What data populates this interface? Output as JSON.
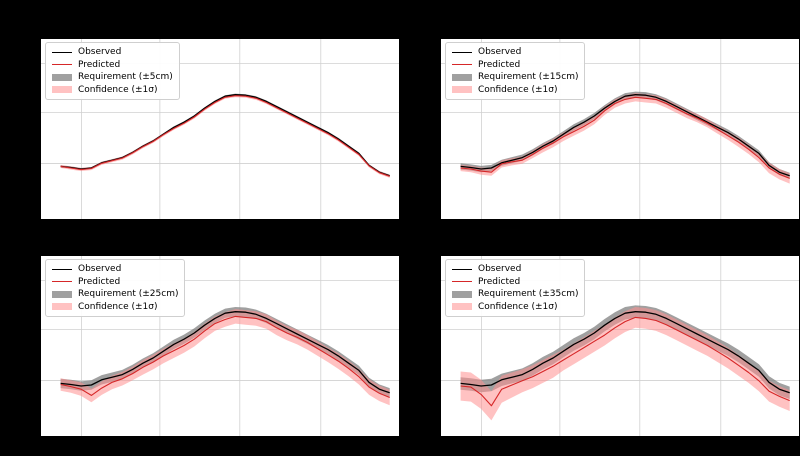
{
  "chart_data": [
    {
      "type": "line",
      "title": "",
      "xlabel": "",
      "ylabel": "",
      "legend_position": "top-left",
      "grid": true,
      "xlim": [
        0,
        350
      ],
      "ylim": [
        0,
        350
      ],
      "series": [
        {
          "name": "Observed",
          "color": "#000000",
          "x": [
            20,
            30,
            40,
            50,
            60,
            70,
            80,
            90,
            100,
            110,
            120,
            130,
            140,
            150,
            160,
            170,
            180,
            190,
            200,
            210,
            220,
            230,
            240,
            250,
            260,
            270,
            280,
            290,
            300,
            310,
            320,
            330,
            340
          ],
          "y": [
            103,
            101,
            98,
            100,
            110,
            115,
            120,
            130,
            142,
            152,
            165,
            178,
            188,
            200,
            215,
            228,
            238,
            241,
            240,
            236,
            228,
            218,
            208,
            198,
            188,
            178,
            168,
            156,
            142,
            128,
            105,
            92,
            85
          ]
        },
        {
          "name": "Predicted",
          "color": "#d62728",
          "x": [
            20,
            30,
            40,
            50,
            60,
            70,
            80,
            90,
            100,
            110,
            120,
            130,
            140,
            150,
            160,
            170,
            180,
            190,
            200,
            210,
            220,
            230,
            240,
            250,
            260,
            270,
            280,
            290,
            300,
            310,
            320,
            330,
            340
          ],
          "y": [
            103,
            100,
            97,
            99,
            109,
            114,
            119,
            129,
            141,
            151,
            164,
            176,
            186,
            198,
            213,
            226,
            236,
            239,
            238,
            234,
            226,
            216,
            206,
            196,
            186,
            176,
            166,
            154,
            140,
            126,
            104,
            91,
            84
          ]
        }
      ],
      "bands": [
        {
          "name": "Requirement (±5cm)",
          "color": "#808080",
          "center_series": 0,
          "half_width": [
            2,
            2,
            2,
            2,
            2,
            2,
            2,
            2,
            2,
            2,
            2,
            2,
            2,
            2,
            2,
            2,
            2,
            2,
            2,
            2,
            2,
            2,
            2,
            2,
            2,
            2,
            2,
            2,
            2,
            2,
            2,
            2,
            2
          ]
        },
        {
          "name": "Confidence (±1σ)",
          "color": "#ff9090",
          "center_series": 1,
          "half_width": [
            3,
            3,
            3,
            3,
            3,
            3,
            3,
            3,
            3,
            3,
            3,
            3,
            3,
            3,
            3,
            3,
            3,
            3,
            3,
            3,
            3,
            3,
            3,
            3,
            3,
            3,
            3,
            3,
            3,
            3,
            3,
            3,
            3
          ]
        }
      ]
    },
    {
      "type": "line",
      "title": "",
      "xlabel": "",
      "ylabel": "",
      "legend_position": "top-left",
      "grid": true,
      "xlim": [
        0,
        350
      ],
      "ylim": [
        0,
        350
      ],
      "series": [
        {
          "name": "Observed",
          "color": "#000000",
          "x": [
            20,
            30,
            40,
            50,
            60,
            70,
            80,
            90,
            100,
            110,
            120,
            130,
            140,
            150,
            160,
            170,
            180,
            190,
            200,
            210,
            220,
            230,
            240,
            250,
            260,
            270,
            280,
            290,
            300,
            310,
            320,
            330,
            340
          ],
          "y": [
            103,
            101,
            98,
            100,
            110,
            115,
            120,
            130,
            142,
            152,
            165,
            178,
            188,
            200,
            215,
            228,
            238,
            241,
            240,
            236,
            228,
            218,
            208,
            198,
            188,
            178,
            168,
            156,
            142,
            128,
            105,
            92,
            85
          ]
        },
        {
          "name": "Predicted",
          "color": "#d62728",
          "x": [
            20,
            30,
            40,
            50,
            60,
            70,
            80,
            90,
            100,
            110,
            120,
            130,
            140,
            150,
            160,
            170,
            180,
            190,
            200,
            210,
            220,
            230,
            240,
            250,
            260,
            270,
            280,
            290,
            300,
            310,
            320,
            330,
            340
          ],
          "y": [
            100,
            98,
            94,
            92,
            108,
            112,
            115,
            126,
            138,
            148,
            160,
            170,
            180,
            192,
            210,
            224,
            232,
            236,
            234,
            232,
            224,
            214,
            204,
            196,
            186,
            174,
            162,
            150,
            136,
            120,
            100,
            88,
            80
          ]
        }
      ],
      "bands": [
        {
          "name": "Requirement (±15cm)",
          "color": "#808080",
          "center_series": 0,
          "half_width": [
            6,
            6,
            6,
            6,
            6,
            6,
            6,
            6,
            6,
            6,
            6,
            6,
            6,
            6,
            6,
            6,
            6,
            6,
            6,
            6,
            6,
            6,
            6,
            6,
            6,
            6,
            6,
            6,
            6,
            6,
            6,
            6,
            6
          ]
        },
        {
          "name": "Confidence (±1σ)",
          "color": "#ff9090",
          "center_series": 1,
          "half_width": [
            6,
            6,
            7,
            7,
            7,
            7,
            7,
            7,
            8,
            8,
            8,
            8,
            8,
            8,
            8,
            8,
            8,
            8,
            8,
            8,
            8,
            8,
            8,
            8,
            8,
            8,
            8,
            9,
            9,
            9,
            10,
            10,
            10
          ]
        }
      ]
    },
    {
      "type": "line",
      "title": "",
      "xlabel": "",
      "ylabel": "",
      "legend_position": "top-left",
      "grid": true,
      "xlim": [
        0,
        350
      ],
      "ylim": [
        0,
        350
      ],
      "series": [
        {
          "name": "Observed",
          "color": "#000000",
          "x": [
            20,
            30,
            40,
            50,
            60,
            70,
            80,
            90,
            100,
            110,
            120,
            130,
            140,
            150,
            160,
            170,
            180,
            190,
            200,
            210,
            220,
            230,
            240,
            250,
            260,
            270,
            280,
            290,
            300,
            310,
            320,
            330,
            340
          ],
          "y": [
            103,
            101,
            98,
            100,
            110,
            115,
            120,
            130,
            142,
            152,
            165,
            178,
            188,
            200,
            215,
            228,
            238,
            241,
            240,
            236,
            228,
            218,
            208,
            198,
            188,
            178,
            168,
            156,
            142,
            128,
            105,
            92,
            85
          ]
        },
        {
          "name": "Predicted",
          "color": "#d62728",
          "x": [
            20,
            30,
            40,
            50,
            60,
            70,
            80,
            90,
            100,
            110,
            120,
            130,
            140,
            150,
            160,
            170,
            180,
            190,
            200,
            210,
            220,
            230,
            240,
            250,
            260,
            270,
            280,
            290,
            300,
            310,
            320,
            330,
            340
          ],
          "y": [
            101,
            97,
            92,
            80,
            94,
            105,
            112,
            122,
            134,
            144,
            156,
            166,
            176,
            188,
            204,
            218,
            226,
            232,
            230,
            228,
            222,
            210,
            200,
            192,
            182,
            170,
            158,
            146,
            132,
            116,
            96,
            84,
            76
          ]
        }
      ],
      "bands": [
        {
          "name": "Requirement (±25cm)",
          "color": "#808080",
          "center_series": 0,
          "half_width": [
            9,
            9,
            9,
            9,
            9,
            9,
            9,
            9,
            9,
            9,
            9,
            9,
            9,
            9,
            9,
            9,
            9,
            9,
            9,
            9,
            9,
            9,
            9,
            9,
            9,
            9,
            9,
            9,
            9,
            9,
            9,
            9,
            9
          ]
        },
        {
          "name": "Confidence (±1σ)",
          "color": "#ff9090",
          "center_series": 1,
          "half_width": [
            12,
            12,
            13,
            13,
            13,
            13,
            13,
            13,
            14,
            14,
            14,
            14,
            14,
            14,
            14,
            14,
            14,
            14,
            14,
            14,
            14,
            14,
            14,
            14,
            14,
            14,
            14,
            15,
            15,
            15,
            15,
            15,
            15
          ]
        }
      ]
    },
    {
      "type": "line",
      "title": "",
      "xlabel": "",
      "ylabel": "",
      "legend_position": "top-left",
      "grid": true,
      "xlim": [
        0,
        350
      ],
      "ylim": [
        0,
        350
      ],
      "series": [
        {
          "name": "Observed",
          "color": "#000000",
          "x": [
            20,
            30,
            40,
            50,
            60,
            70,
            80,
            90,
            100,
            110,
            120,
            130,
            140,
            150,
            160,
            170,
            180,
            190,
            200,
            210,
            220,
            230,
            240,
            250,
            260,
            270,
            280,
            290,
            300,
            310,
            320,
            330,
            340
          ],
          "y": [
            103,
            101,
            98,
            100,
            110,
            115,
            120,
            130,
            142,
            152,
            165,
            178,
            188,
            200,
            215,
            228,
            238,
            241,
            240,
            236,
            228,
            218,
            208,
            198,
            188,
            178,
            168,
            156,
            142,
            128,
            105,
            92,
            85
          ]
        },
        {
          "name": "Predicted",
          "color": "#d62728",
          "x": [
            20,
            30,
            40,
            50,
            60,
            70,
            80,
            90,
            100,
            110,
            120,
            130,
            140,
            150,
            160,
            170,
            180,
            190,
            200,
            210,
            220,
            230,
            240,
            250,
            260,
            270,
            280,
            290,
            300,
            310,
            320,
            330,
            340
          ],
          "y": [
            98,
            96,
            82,
            60,
            92,
            100,
            108,
            116,
            126,
            136,
            148,
            160,
            172,
            184,
            196,
            210,
            222,
            230,
            228,
            224,
            216,
            206,
            196,
            186,
            176,
            164,
            152,
            138,
            124,
            108,
            88,
            78,
            70
          ]
        }
      ],
      "bands": [
        {
          "name": "Requirement (±35cm)",
          "color": "#808080",
          "center_series": 0,
          "half_width": [
            12,
            12,
            12,
            12,
            12,
            12,
            12,
            12,
            12,
            12,
            12,
            12,
            12,
            12,
            12,
            12,
            12,
            12,
            12,
            12,
            12,
            12,
            12,
            12,
            12,
            12,
            12,
            12,
            12,
            12,
            12,
            12,
            12
          ]
        },
        {
          "name": "Confidence (±1σ)",
          "color": "#ff9090",
          "center_series": 1,
          "half_width": [
            28,
            28,
            28,
            28,
            26,
            24,
            22,
            22,
            22,
            22,
            20,
            20,
            20,
            20,
            20,
            20,
            20,
            20,
            20,
            20,
            20,
            20,
            20,
            20,
            20,
            20,
            20,
            20,
            20,
            20,
            20,
            20,
            20
          ]
        }
      ]
    }
  ]
}
